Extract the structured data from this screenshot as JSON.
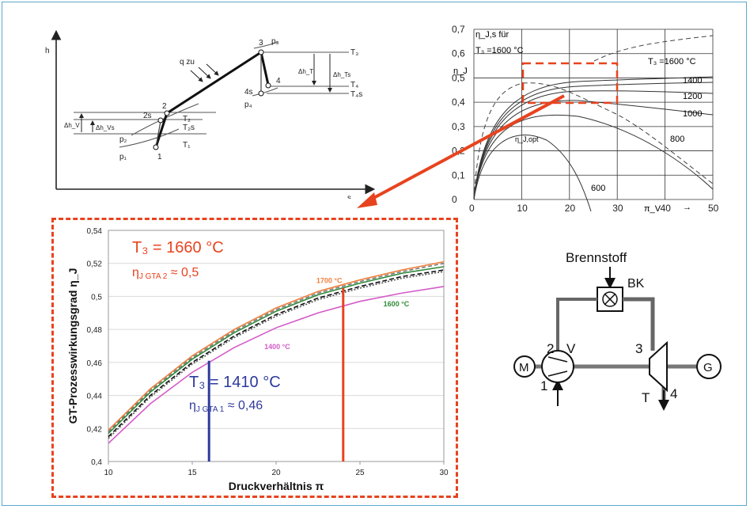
{
  "colors": {
    "frame": "#5aa9c8",
    "accent_red": "#e8431f",
    "blue": "#2d3a9c",
    "c1700": "#f07f3c",
    "c1600": "#2f8a3a",
    "c1400": "#d45ac8"
  },
  "hs_diagram": {
    "y_axis": "h",
    "x_axis": "s",
    "points": [
      "1",
      "2",
      "2s",
      "3",
      "4",
      "4s"
    ],
    "pressures": [
      "p₁",
      "p₂",
      "p₃",
      "p₄"
    ],
    "temps": [
      "T₁",
      "T₂",
      "T₂s",
      "T₃",
      "T₄",
      "T₄s"
    ],
    "dh": [
      "Δh_V",
      "Δh_Vs",
      "Δh_T",
      "Δh_Ts"
    ],
    "heat": "q zu"
  },
  "eta_chart": {
    "y_label": "η_J",
    "x_label": "π_V",
    "legend_line1": "η_J,s für",
    "legend_line2": "T₃ =1600 °C",
    "opt_label": "η_J,opt",
    "curve_labels": [
      "T₃ =1600 °C",
      "1400",
      "1200",
      "1000",
      "800",
      "600"
    ],
    "y_ticks": [
      "0",
      "0,1",
      "0,2",
      "0,3",
      "0,4",
      "0,5",
      "0,6",
      "0,7"
    ],
    "x_ticks": [
      "0",
      "10",
      "20",
      "30",
      "40",
      "50"
    ],
    "arrow": "→"
  },
  "chart_data": {
    "type": "line",
    "xlabel": "Druckverhältnis π",
    "ylabel": "GT-Prozesswirkungsgrad η_J",
    "xlim": [
      10,
      30
    ],
    "ylim": [
      0.4,
      0.54
    ],
    "x_ticks": [
      "10",
      "15",
      "20",
      "25",
      "30"
    ],
    "y_ticks": [
      "0,4",
      "0,42",
      "0,44",
      "0,46",
      "0,48",
      "0,5",
      "0,52",
      "0,54"
    ],
    "x": [
      10,
      12.5,
      15,
      17.5,
      20,
      22.5,
      25,
      27.5,
      30
    ],
    "series": [
      {
        "name": "1700 °C",
        "color": "#f07f3c",
        "dash": "",
        "values": [
          0.419,
          0.444,
          0.464,
          0.48,
          0.493,
          0.503,
          0.51,
          0.516,
          0.521
        ]
      },
      {
        "name": "",
        "color": "#777777",
        "dash": "5 3",
        "values": [
          0.418,
          0.443,
          0.463,
          0.479,
          0.492,
          0.502,
          0.509,
          0.515,
          0.52
        ]
      },
      {
        "name": "1600 °C",
        "color": "#2f8a3a",
        "dash": "",
        "values": [
          0.417,
          0.442,
          0.462,
          0.478,
          0.491,
          0.501,
          0.508,
          0.514,
          0.518
        ]
      },
      {
        "name": "",
        "color": "#111111",
        "dash": "6 3",
        "values": [
          0.415,
          0.44,
          0.46,
          0.476,
          0.489,
          0.499,
          0.506,
          0.512,
          0.516
        ]
      },
      {
        "name": "",
        "color": "#555555",
        "dash": "2 2",
        "values": [
          0.414,
          0.439,
          0.459,
          0.475,
          0.488,
          0.498,
          0.505,
          0.511,
          0.515
        ]
      },
      {
        "name": "1400 °C",
        "color": "#d45ac8",
        "dash": "",
        "values": [
          0.411,
          0.435,
          0.454,
          0.469,
          0.481,
          0.49,
          0.497,
          0.502,
          0.506
        ]
      }
    ],
    "markers": [
      {
        "x": 16,
        "y": 0.461,
        "color": "#2d3a9c"
      },
      {
        "x": 24,
        "y": 0.505,
        "color": "#e8431f"
      }
    ],
    "annotation_red": {
      "line1": "T₃ = 1660 °C",
      "line2_main": "η",
      "line2_sub": "J GTA 2",
      "line2_val": " ≈ 0,5"
    },
    "annotation_blue": {
      "line1": "T₃ = 1410 °C",
      "line2_main": "η",
      "line2_sub": "J GTA 1",
      "line2_val": " ≈ 0,46"
    }
  },
  "schematic": {
    "fuel": "Brennstoff",
    "combustor": "BK",
    "motor": "M",
    "compressor": "V",
    "turbine": "T",
    "generator": "G",
    "nodes": [
      "1",
      "2",
      "3",
      "4"
    ]
  }
}
